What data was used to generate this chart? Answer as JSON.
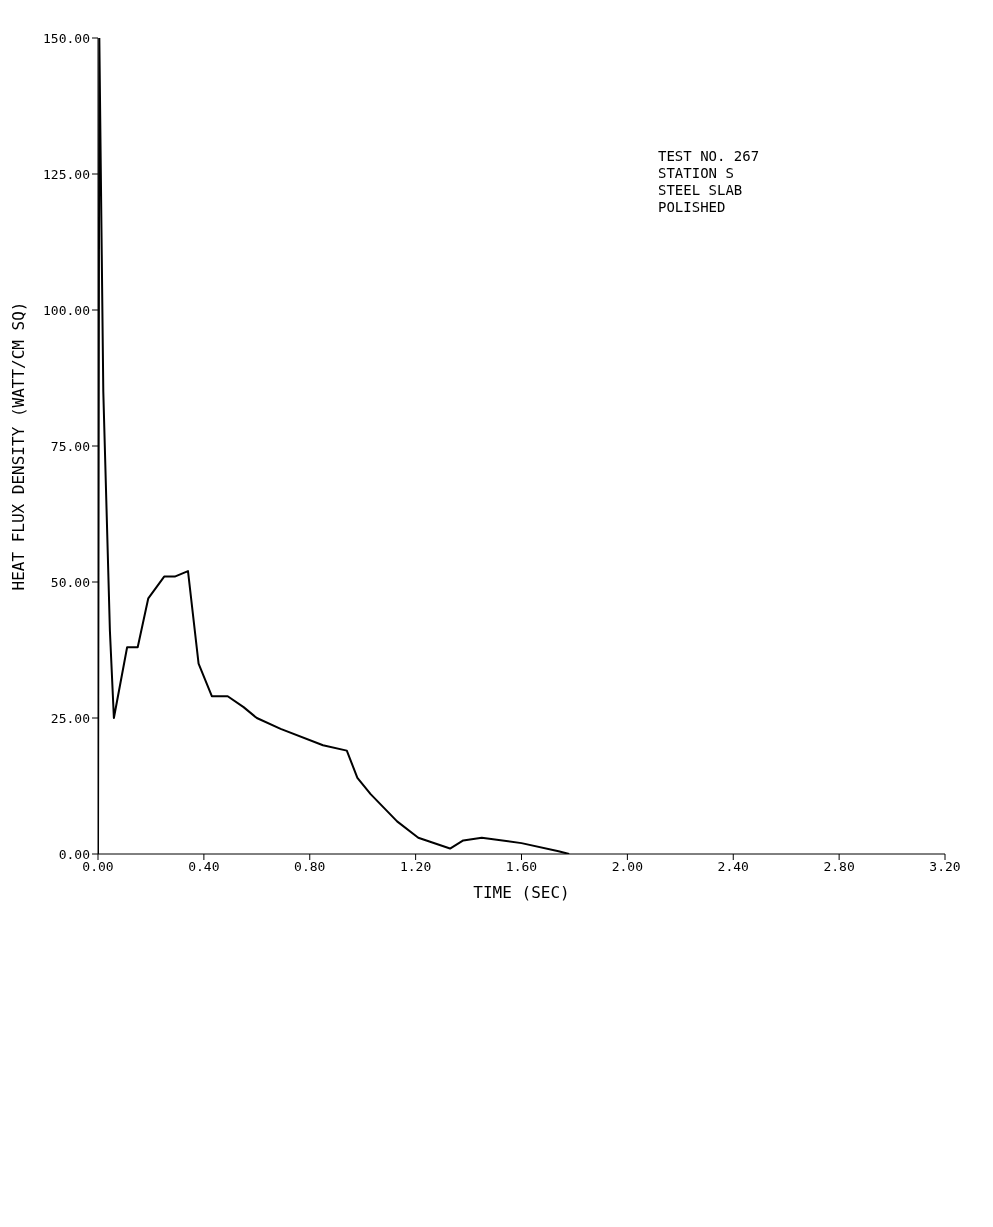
{
  "chart_data": {
    "type": "line",
    "xlabel": "TIME (SEC)",
    "ylabel": "HEAT FLUX DENSITY (WATT/CM SQ)",
    "annotations": [
      "TEST NO. 267",
      "STATION S",
      "STEEL SLAB",
      "POLISHED"
    ],
    "xlim": [
      0,
      3.2
    ],
    "xticks": [
      {
        "value": 0,
        "label": "0.00"
      },
      {
        "value": 0.4,
        "label": "0.40"
      },
      {
        "value": 0.8,
        "label": "0.80"
      },
      {
        "value": 1.2,
        "label": "1.20"
      },
      {
        "value": 1.6,
        "label": "1.60"
      },
      {
        "value": 2,
        "label": "2.00"
      },
      {
        "value": 2.4,
        "label": "2.40"
      },
      {
        "value": 2.8,
        "label": "2.80"
      },
      {
        "value": 3.2,
        "label": "3.20"
      }
    ],
    "ylim": [
      0,
      150
    ],
    "yticks": [
      {
        "value": 0,
        "label": "0.00"
      },
      {
        "value": 25,
        "label": "25.00"
      },
      {
        "value": 50,
        "label": "50.00"
      },
      {
        "value": 75,
        "label": "75.00"
      },
      {
        "value": 100,
        "label": "100.00"
      },
      {
        "value": 125,
        "label": "125.00"
      },
      {
        "value": 150,
        "label": "150.00"
      }
    ],
    "marker": "none",
    "line_style": "solid",
    "series": [
      {
        "color": "#000000",
        "x": [
          0,
          0.005,
          0.02,
          0.045,
          0.06,
          0.11,
          0.15,
          0.19,
          0.25,
          0.29,
          0.34,
          0.38,
          0.43,
          0.49,
          0.55,
          0.6,
          0.69,
          0.85,
          0.94,
          0.98,
          1.03,
          1.13,
          1.21,
          1.33,
          1.38,
          1.45,
          1.6,
          1.74,
          1.78
        ],
        "values": [
          0,
          150,
          85,
          41,
          25,
          38,
          38,
          47,
          51,
          51,
          52,
          35,
          29,
          29,
          27,
          25,
          23,
          20,
          19,
          14,
          11,
          6,
          3,
          1,
          2.5,
          3,
          2,
          0.5,
          0
        ]
      }
    ]
  }
}
